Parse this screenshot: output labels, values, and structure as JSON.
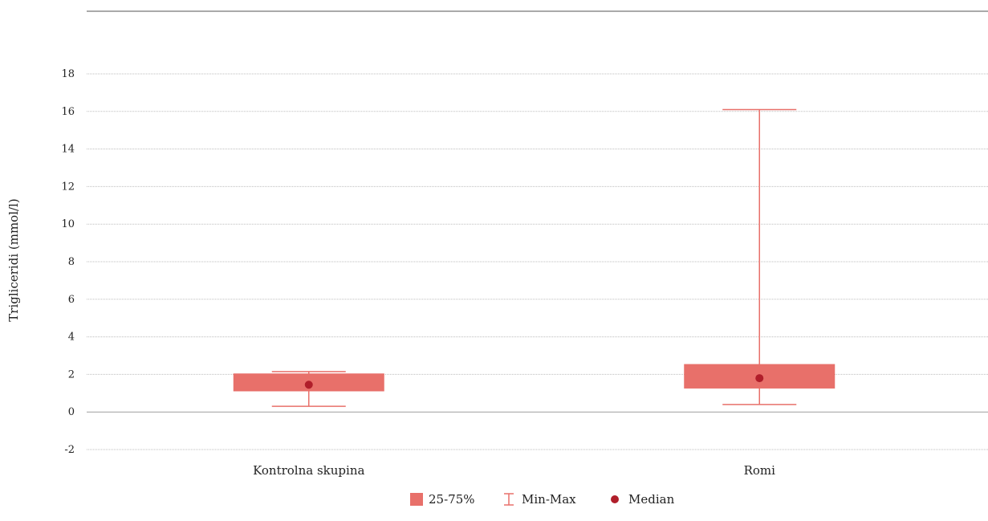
{
  "chart_data": {
    "type": "boxplot",
    "title": "",
    "xlabel": "",
    "ylabel": "Trigliceridi (mmol/l)",
    "ylim": [
      -2,
      18
    ],
    "yticks": [
      -2,
      0,
      2,
      4,
      6,
      8,
      10,
      12,
      14,
      16,
      18
    ],
    "ytick_labels": [
      "-2",
      "0",
      "2",
      "4",
      "6",
      "8",
      "10",
      "12",
      "14",
      "16",
      "18"
    ],
    "grid": true,
    "categories": [
      "Kontrolna skupina",
      "Romi"
    ],
    "boxes": [
      {
        "category": "Kontrolna skupina",
        "q1": 1.1,
        "q3": 2.05,
        "min": 0.3,
        "max": 2.15,
        "median": 1.45
      },
      {
        "category": "Romi",
        "q1": 1.25,
        "q3": 2.55,
        "min": 0.4,
        "max": 16.1,
        "median": 1.8
      }
    ],
    "legend": {
      "placement": "bottom-center",
      "items": [
        {
          "key": "box",
          "label": "25-75%"
        },
        {
          "key": "whisker",
          "label": "Min-Max"
        },
        {
          "key": "median",
          "label": "Median"
        }
      ]
    },
    "colors": {
      "box": "#e8706a",
      "whisker": "#e8706a",
      "median": "#b01e2a",
      "grid": "#bdbdbd",
      "axis": "#9e9e9e",
      "top_rule": "#555555"
    }
  }
}
